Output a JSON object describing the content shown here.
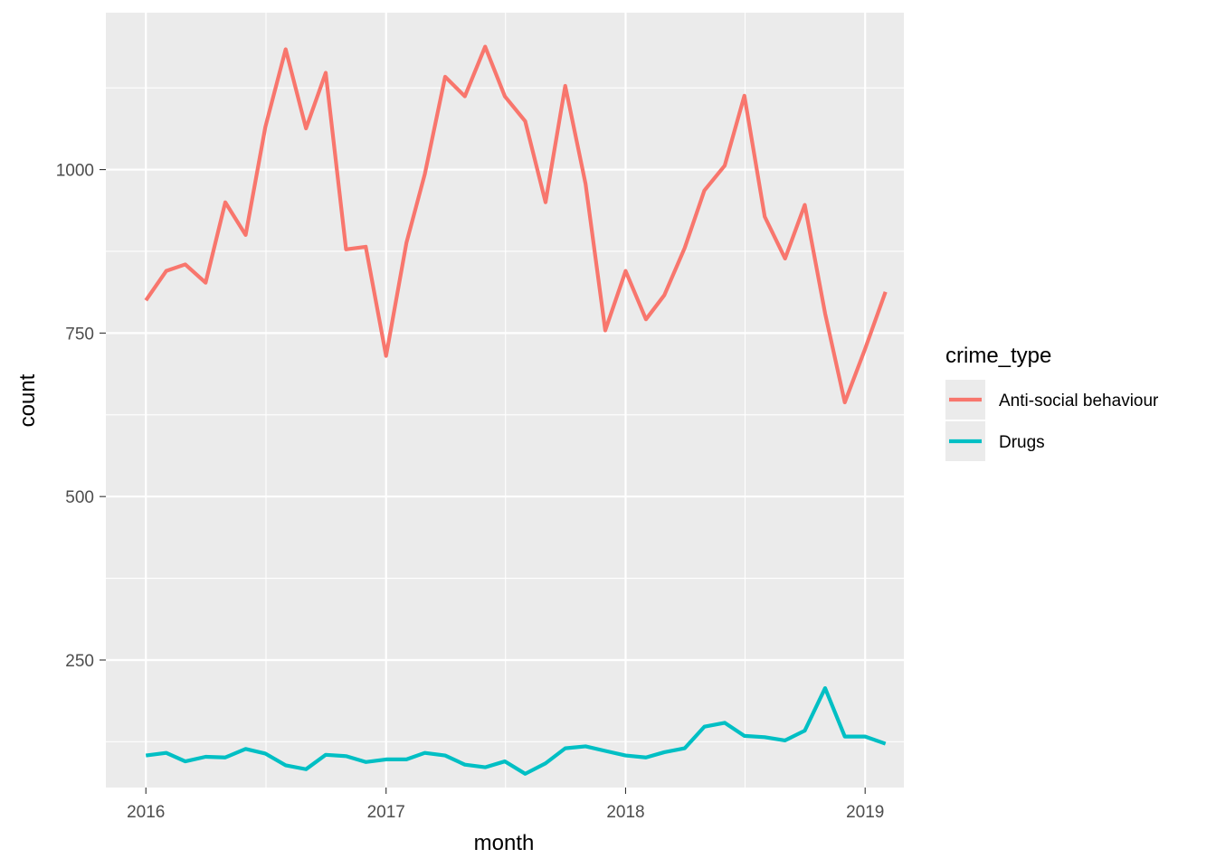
{
  "chart_data": {
    "type": "line",
    "title": "",
    "xlabel": "month",
    "ylabel": "count",
    "x_ticks": [
      "2016",
      "2017",
      "2018",
      "2019"
    ],
    "y_ticks": [
      "250",
      "500",
      "750",
      "1000"
    ],
    "xlim": [
      "2015-11-01",
      "2019-03-01"
    ],
    "ylim": [
      55,
      1240
    ],
    "grid": true,
    "legend": {
      "title": "crime_type",
      "position": "right"
    },
    "x": [
      "2016-01",
      "2016-02",
      "2016-03",
      "2016-04",
      "2016-05",
      "2016-06",
      "2016-07",
      "2016-08",
      "2016-09",
      "2016-10",
      "2016-11",
      "2016-12",
      "2017-01",
      "2017-02",
      "2017-03",
      "2017-04",
      "2017-05",
      "2017-06",
      "2017-07",
      "2017-08",
      "2017-09",
      "2017-10",
      "2017-11",
      "2017-12",
      "2018-01",
      "2018-02",
      "2018-03",
      "2018-04",
      "2018-05",
      "2018-06",
      "2018-07",
      "2018-08",
      "2018-09",
      "2018-10",
      "2018-11",
      "2018-12",
      "2019-01",
      "2019-02"
    ],
    "series": [
      {
        "name": "Anti-social behaviour",
        "color": "#F8766D",
        "values": [
          800,
          845,
          855,
          827,
          950,
          900,
          1065,
          1184,
          1063,
          1148,
          878,
          882,
          715,
          888,
          993,
          1142,
          1112,
          1188,
          1112,
          1074,
          950,
          1128,
          978,
          754,
          845,
          771,
          808,
          880,
          968,
          1006,
          1113,
          928,
          864,
          946,
          780,
          644,
          726,
          813
        ]
      },
      {
        "name": "Drugs",
        "color": "#00BFC4",
        "values": [
          104,
          108,
          95,
          102,
          101,
          114,
          107,
          89,
          83,
          105,
          103,
          94,
          98,
          98,
          108,
          104,
          90,
          86,
          95,
          76,
          92,
          115,
          118,
          111,
          104,
          101,
          109,
          115,
          148,
          154,
          134,
          132,
          127,
          142,
          207,
          133,
          133,
          122
        ]
      }
    ]
  }
}
